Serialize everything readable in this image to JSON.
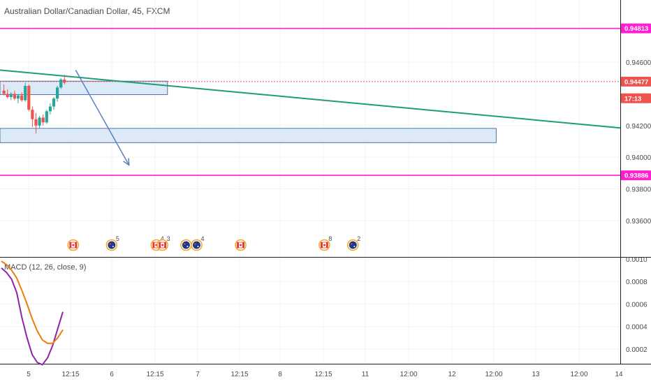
{
  "chart_title": "Australian Dollar/Canadian Dollar, 45, FXCM",
  "macd_label": "MACD (12, 26, close, 9)",
  "colors": {
    "magenta": "#ff1ed2",
    "trendline": "#1f9d74",
    "zone_fill": "#d6e6f7",
    "zone_stroke": "#4f72ad",
    "arrow": "#5b7fbd",
    "price_tag": "#ef5350",
    "macd": "#8e24aa",
    "signal": "#ef7c0c",
    "bull": "#26a69a",
    "bear": "#ef5350"
  },
  "chart_data": [
    {
      "type": "line",
      "title": "Australian Dollar/Canadian Dollar, 45, FXCM",
      "y_ticks": [
        "0.94600",
        "0.94200",
        "0.94000",
        "0.93800",
        "0.93600"
      ],
      "x_ticks": [
        "5",
        "12:15",
        "6",
        "12:15",
        "7",
        "12:15",
        "8",
        "12:15",
        "11",
        "12:00",
        "12",
        "12:00",
        "13",
        "12:00",
        "14"
      ],
      "ylim": [
        0.9345,
        0.9495
      ],
      "price_tags": [
        {
          "label": "0.94813",
          "value": 0.94813,
          "style": "magenta"
        },
        {
          "label": "0.94477",
          "value": 0.94477,
          "style": "red"
        },
        {
          "label": "17:13",
          "value": 0.94372,
          "style": "red"
        },
        {
          "label": "0.93886",
          "value": 0.93886,
          "style": "magenta"
        }
      ],
      "horizontal_lines": [
        0.94813,
        0.93886
      ],
      "current_price": 0.94477,
      "trendline": {
        "x_start": 0,
        "y_start": 0.9455,
        "x_end": 1,
        "y_end": 0.94185
      },
      "zones": [
        {
          "x_start": 0,
          "x_end": 0.27,
          "y_top": 0.9448,
          "y_bottom": 0.94395
        },
        {
          "x_start": 0,
          "x_end": 0.8,
          "y_top": 0.94182,
          "y_bottom": 0.94092
        }
      ],
      "arrow": {
        "x_start": 0.122,
        "y_start": 0.9455,
        "x_end": 0.208,
        "y_end": 0.9395
      },
      "candles": [
        {
          "o": 0.9442,
          "h": 0.9446,
          "l": 0.9439,
          "c": 0.944
        },
        {
          "o": 0.944,
          "h": 0.9443,
          "l": 0.9437,
          "c": 0.9438
        },
        {
          "o": 0.9438,
          "h": 0.9441,
          "l": 0.9436,
          "c": 0.944
        },
        {
          "o": 0.944,
          "h": 0.9442,
          "l": 0.9436,
          "c": 0.9437
        },
        {
          "o": 0.9437,
          "h": 0.944,
          "l": 0.9434,
          "c": 0.9439
        },
        {
          "o": 0.9439,
          "h": 0.9441,
          "l": 0.9435,
          "c": 0.9436
        },
        {
          "o": 0.9436,
          "h": 0.9447,
          "l": 0.9435,
          "c": 0.9445
        },
        {
          "o": 0.9445,
          "h": 0.9446,
          "l": 0.9429,
          "c": 0.943
        },
        {
          "o": 0.943,
          "h": 0.9432,
          "l": 0.9419,
          "c": 0.9424
        },
        {
          "o": 0.9424,
          "h": 0.9428,
          "l": 0.9415,
          "c": 0.942
        },
        {
          "o": 0.942,
          "h": 0.9426,
          "l": 0.9418,
          "c": 0.9425
        },
        {
          "o": 0.9425,
          "h": 0.9427,
          "l": 0.942,
          "c": 0.9422
        },
        {
          "o": 0.9422,
          "h": 0.943,
          "l": 0.9421,
          "c": 0.9429
        },
        {
          "o": 0.9429,
          "h": 0.9434,
          "l": 0.9427,
          "c": 0.9432
        },
        {
          "o": 0.9432,
          "h": 0.9438,
          "l": 0.943,
          "c": 0.9437
        },
        {
          "o": 0.9437,
          "h": 0.9445,
          "l": 0.9435,
          "c": 0.9444
        },
        {
          "o": 0.9444,
          "h": 0.945,
          "l": 0.9443,
          "c": 0.9449
        },
        {
          "o": 0.9449,
          "h": 0.9452,
          "l": 0.9446,
          "c": 0.9447
        }
      ],
      "events": [
        {
          "kind": "ca",
          "x": 0.118,
          "count": ""
        },
        {
          "kind": "au",
          "x": 0.18,
          "count": "5"
        },
        {
          "kind": "ca",
          "x": 0.252,
          "count": "4"
        },
        {
          "kind": "ca",
          "x": 0.262,
          "count": "3"
        },
        {
          "kind": "au",
          "x": 0.3,
          "count": ""
        },
        {
          "kind": "au",
          "x": 0.317,
          "count": "4"
        },
        {
          "kind": "ca",
          "x": 0.388,
          "count": ""
        },
        {
          "kind": "ca",
          "x": 0.523,
          "count": "8"
        },
        {
          "kind": "au",
          "x": 0.569,
          "count": "2"
        }
      ]
    },
    {
      "type": "line",
      "title": "MACD (12, 26, close, 9)",
      "y_ticks": [
        "0.0010",
        "0.0008",
        "0.0006",
        "0.0004",
        "0.0002"
      ],
      "ylim": [
        3e-05,
        0.00104
      ],
      "series": [
        {
          "values": [
            0.00092,
            0.00088,
            0.00082,
            0.0007,
            0.00048,
            0.0003,
            0.00015,
            8e-05,
            6e-05,
            0.00012,
            0.00023,
            0.00038,
            0.00053
          ]
        },
        {
          "values": [
            0.00098,
            0.00095,
            0.0009,
            0.00083,
            0.00072,
            0.0006,
            0.00047,
            0.00036,
            0.00028,
            0.00025,
            0.00025,
            0.0003,
            0.00037
          ]
        }
      ]
    }
  ]
}
